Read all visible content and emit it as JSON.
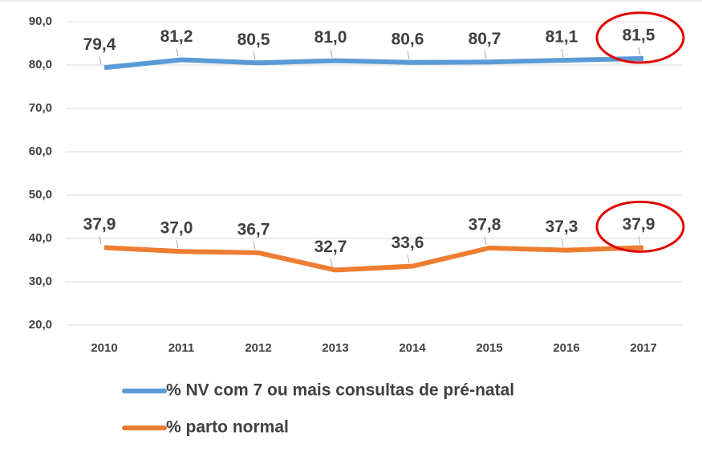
{
  "chart_data": {
    "type": "line",
    "categories": [
      "2010",
      "2011",
      "2012",
      "2013",
      "2014",
      "2015",
      "2016",
      "2017"
    ],
    "series": [
      {
        "name": "% NV com 7 ou mais consultas de pré-natal",
        "color": "#5b9bd5",
        "values": [
          79.4,
          81.2,
          80.5,
          81.0,
          80.6,
          80.7,
          81.1,
          81.5
        ],
        "value_labels": [
          "79,4",
          "81,2",
          "80,5",
          "81,0",
          "80,6",
          "80,7",
          "81,1",
          "81,5"
        ]
      },
      {
        "name": "% parto normal",
        "color": "#ed7d31",
        "values": [
          37.9,
          37.0,
          36.7,
          32.7,
          33.6,
          37.8,
          37.3,
          37.9
        ],
        "value_labels": [
          "37,9",
          "37,0",
          "36,7",
          "32,7",
          "33,6",
          "37,8",
          "37,3",
          "37,9"
        ]
      }
    ],
    "ylim": [
      20,
      90
    ],
    "yticks": [
      {
        "value": 20,
        "label": "20,0"
      },
      {
        "value": 30,
        "label": "30,0"
      },
      {
        "value": 40,
        "label": "40,0"
      },
      {
        "value": 50,
        "label": "50,0"
      },
      {
        "value": 60,
        "label": "60,0"
      },
      {
        "value": 70,
        "label": "70,0"
      },
      {
        "value": 80,
        "label": "80,0"
      },
      {
        "value": 90,
        "label": "90,0"
      }
    ],
    "grid": true
  }
}
